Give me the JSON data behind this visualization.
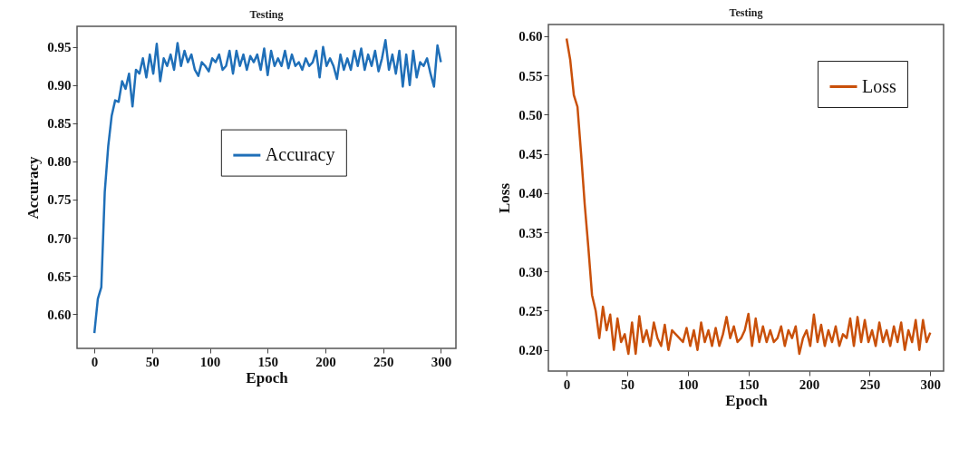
{
  "chart_data": [
    {
      "type": "line",
      "title": "Testing",
      "xlabel": "Epoch",
      "ylabel": "Accuracy",
      "xlim": [
        -15,
        313
      ],
      "ylim": [
        0.555,
        0.977
      ],
      "xticks": [
        0,
        50,
        100,
        150,
        200,
        250,
        300
      ],
      "yticks": [
        {
          "value": 0.6,
          "label": "0.60"
        },
        0.65,
        {
          "value": 0.7,
          "label": "0.70"
        },
        0.75,
        {
          "value": 0.8,
          "label": "0.80"
        },
        0.85,
        {
          "value": 0.9,
          "label": "0.90"
        },
        0.95
      ],
      "grid": false,
      "legend": "right",
      "x": [
        0,
        3,
        6,
        9,
        12,
        15,
        18,
        21,
        24,
        27,
        30,
        33,
        36,
        39,
        42,
        45,
        48,
        51,
        54,
        57,
        60,
        63,
        66,
        69,
        72,
        75,
        78,
        81,
        84,
        87,
        90,
        93,
        96,
        99,
        102,
        105,
        108,
        111,
        114,
        117,
        120,
        123,
        126,
        129,
        132,
        135,
        138,
        141,
        144,
        147,
        150,
        153,
        156,
        159,
        162,
        165,
        168,
        171,
        174,
        177,
        180,
        183,
        186,
        189,
        192,
        195,
        198,
        201,
        204,
        207,
        210,
        213,
        216,
        219,
        222,
        225,
        228,
        231,
        234,
        237,
        240,
        243,
        246,
        249,
        252,
        255,
        258,
        261,
        264,
        267,
        270,
        273,
        276,
        279,
        282,
        285,
        288,
        291,
        294,
        297,
        300
      ],
      "series": [
        {
          "name": "Accuracy",
          "color": "#1f6fb8",
          "values": [
            0.575,
            0.62,
            0.635,
            0.76,
            0.82,
            0.86,
            0.88,
            0.878,
            0.905,
            0.895,
            0.915,
            0.872,
            0.92,
            0.915,
            0.935,
            0.91,
            0.94,
            0.915,
            0.954,
            0.905,
            0.935,
            0.925,
            0.94,
            0.92,
            0.955,
            0.925,
            0.945,
            0.93,
            0.94,
            0.92,
            0.912,
            0.93,
            0.925,
            0.918,
            0.935,
            0.93,
            0.94,
            0.92,
            0.925,
            0.945,
            0.915,
            0.945,
            0.925,
            0.94,
            0.92,
            0.938,
            0.93,
            0.94,
            0.92,
            0.948,
            0.913,
            0.945,
            0.925,
            0.935,
            0.925,
            0.945,
            0.922,
            0.94,
            0.925,
            0.93,
            0.92,
            0.935,
            0.925,
            0.93,
            0.945,
            0.91,
            0.95,
            0.925,
            0.935,
            0.925,
            0.908,
            0.94,
            0.92,
            0.935,
            0.92,
            0.945,
            0.925,
            0.948,
            0.92,
            0.94,
            0.925,
            0.945,
            0.918,
            0.935,
            0.959,
            0.92,
            0.94,
            0.915,
            0.945,
            0.898,
            0.94,
            0.9,
            0.945,
            0.91,
            0.93,
            0.925,
            0.935,
            0.915,
            0.898,
            0.952,
            0.93
          ]
        }
      ]
    },
    {
      "type": "line",
      "title": "Testing",
      "xlabel": "Epoch",
      "ylabel": "Loss",
      "xlim": [
        -15,
        311
      ],
      "ylim": [
        0.173,
        0.615
      ],
      "xticks": [
        0,
        50,
        100,
        150,
        200,
        250,
        300
      ],
      "yticks": [
        {
          "value": 0.2,
          "label": "0.20"
        },
        0.25,
        {
          "value": 0.3,
          "label": "0.30"
        },
        0.35,
        {
          "value": 0.4,
          "label": "0.40"
        },
        0.45,
        {
          "value": 0.5,
          "label": "0.50"
        },
        0.55,
        {
          "value": 0.6,
          "label": "0.60"
        }
      ],
      "grid": false,
      "legend": "top right",
      "x": [
        0,
        3,
        6,
        9,
        12,
        15,
        18,
        21,
        24,
        27,
        30,
        33,
        36,
        39,
        42,
        45,
        48,
        51,
        54,
        57,
        60,
        63,
        66,
        69,
        72,
        75,
        78,
        81,
        84,
        87,
        90,
        93,
        96,
        99,
        102,
        105,
        108,
        111,
        114,
        117,
        120,
        123,
        126,
        129,
        132,
        135,
        138,
        141,
        144,
        147,
        150,
        153,
        156,
        159,
        162,
        165,
        168,
        171,
        174,
        177,
        180,
        183,
        186,
        189,
        192,
        195,
        198,
        201,
        204,
        207,
        210,
        213,
        216,
        219,
        222,
        225,
        228,
        231,
        234,
        237,
        240,
        243,
        246,
        249,
        252,
        255,
        258,
        261,
        264,
        267,
        270,
        273,
        276,
        279,
        282,
        285,
        288,
        291,
        294,
        297,
        300
      ],
      "series": [
        {
          "name": "Loss",
          "color": "#c9500a",
          "values": [
            0.597,
            0.57,
            0.525,
            0.51,
            0.45,
            0.385,
            0.33,
            0.27,
            0.25,
            0.215,
            0.255,
            0.225,
            0.245,
            0.2,
            0.24,
            0.21,
            0.22,
            0.195,
            0.235,
            0.195,
            0.243,
            0.21,
            0.225,
            0.205,
            0.235,
            0.215,
            0.205,
            0.232,
            0.2,
            0.225,
            0.22,
            0.215,
            0.21,
            0.228,
            0.205,
            0.225,
            0.2,
            0.235,
            0.21,
            0.225,
            0.205,
            0.228,
            0.205,
            0.22,
            0.242,
            0.215,
            0.23,
            0.21,
            0.215,
            0.225,
            0.246,
            0.205,
            0.24,
            0.21,
            0.23,
            0.21,
            0.225,
            0.21,
            0.215,
            0.23,
            0.205,
            0.225,
            0.215,
            0.23,
            0.195,
            0.215,
            0.225,
            0.205,
            0.245,
            0.21,
            0.232,
            0.205,
            0.225,
            0.21,
            0.23,
            0.205,
            0.22,
            0.215,
            0.24,
            0.205,
            0.242,
            0.21,
            0.238,
            0.21,
            0.225,
            0.205,
            0.235,
            0.21,
            0.225,
            0.205,
            0.23,
            0.21,
            0.235,
            0.2,
            0.225,
            0.21,
            0.238,
            0.2,
            0.238,
            0.21,
            0.222
          ]
        }
      ]
    }
  ]
}
